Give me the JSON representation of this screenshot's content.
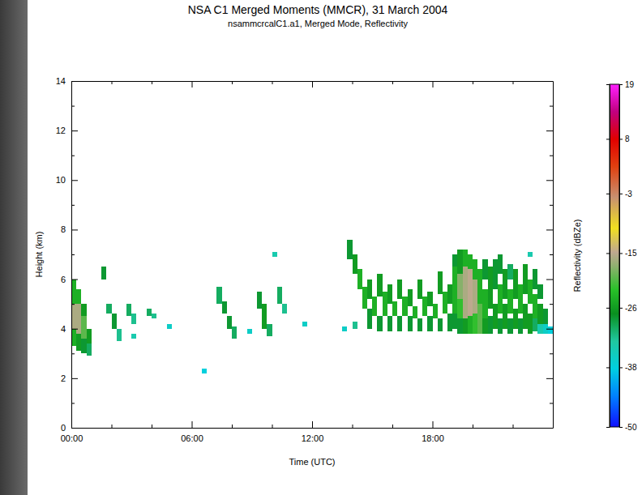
{
  "chart_data": {
    "type": "heatmap",
    "title": "NSA C1 Merged Moments (MMCR), 31 March 2004",
    "subtitle": "nsammcrcalC1.a1, Merged Mode, Reflectivity",
    "x_label": "Time (UTC)",
    "y_label": "Height (km)",
    "xlim": [
      0,
      24
    ],
    "xticks": [
      {
        "value": 0,
        "label": "00:00"
      },
      {
        "value": 6,
        "label": "06:00"
      },
      {
        "value": 12,
        "label": "12:00"
      },
      {
        "value": 18,
        "label": "18:00"
      }
    ],
    "xticks_minor": [
      2,
      4,
      8,
      10,
      14,
      16,
      20,
      22
    ],
    "ylim": [
      0,
      14
    ],
    "yticks": [
      0,
      2,
      4,
      6,
      8,
      10,
      12,
      14
    ],
    "yticks_minor": [
      1,
      3,
      5,
      7,
      9,
      11,
      13
    ],
    "time_step": 0.25,
    "colorbar": {
      "label": "Reflectivity (dBZe)",
      "range": [
        -50,
        19
      ],
      "ticks": [
        19,
        8,
        -3,
        -15,
        -26,
        -38,
        -50
      ]
    },
    "columns": [
      {
        "t": 0,
        "segments": [
          [
            3.3,
            4.0,
            -24
          ],
          [
            4.0,
            5.0,
            -16
          ],
          [
            5.0,
            6.0,
            -24
          ]
        ]
      },
      {
        "t": 0.25,
        "segments": [
          [
            3.1,
            3.8,
            -26
          ],
          [
            3.8,
            5.0,
            -16
          ],
          [
            5.0,
            5.6,
            -24
          ]
        ]
      },
      {
        "t": 0.5,
        "segments": [
          [
            3.0,
            3.6,
            -28
          ],
          [
            3.6,
            4.5,
            -20
          ],
          [
            4.5,
            5.0,
            -26
          ]
        ]
      },
      {
        "t": 0.75,
        "segments": [
          [
            2.9,
            3.4,
            -30
          ],
          [
            3.4,
            4.0,
            -26
          ]
        ]
      },
      {
        "t": 1.5,
        "segments": [
          [
            6.0,
            6.5,
            -28
          ]
        ]
      },
      {
        "t": 1.75,
        "segments": [
          [
            4.6,
            5.0,
            -30
          ]
        ]
      },
      {
        "t": 2.0,
        "segments": [
          [
            4.0,
            4.6,
            -28
          ]
        ]
      },
      {
        "t": 2.25,
        "segments": [
          [
            3.5,
            4.0,
            -32
          ]
        ]
      },
      {
        "t": 2.75,
        "segments": [
          [
            4.5,
            5.0,
            -30
          ]
        ]
      },
      {
        "t": 3.0,
        "segments": [
          [
            3.6,
            3.8,
            -34
          ],
          [
            4.2,
            4.6,
            -32
          ]
        ]
      },
      {
        "t": 3.75,
        "segments": [
          [
            4.5,
            4.8,
            -30
          ]
        ]
      },
      {
        "t": 4.0,
        "segments": [
          [
            4.4,
            4.6,
            -32
          ]
        ]
      },
      {
        "t": 4.75,
        "segments": [
          [
            4.0,
            4.2,
            -36
          ]
        ]
      },
      {
        "t": 6.5,
        "segments": [
          [
            2.2,
            2.4,
            -38
          ]
        ]
      },
      {
        "t": 7.25,
        "segments": [
          [
            5.0,
            5.7,
            -30
          ]
        ]
      },
      {
        "t": 7.5,
        "segments": [
          [
            4.6,
            5.1,
            -28
          ]
        ]
      },
      {
        "t": 7.75,
        "segments": [
          [
            4.0,
            4.5,
            -28
          ]
        ]
      },
      {
        "t": 8.0,
        "segments": [
          [
            3.6,
            4.1,
            -30
          ]
        ]
      },
      {
        "t": 8.75,
        "segments": [
          [
            3.8,
            4.0,
            -36
          ]
        ]
      },
      {
        "t": 9.25,
        "segments": [
          [
            4.8,
            5.5,
            -28
          ]
        ]
      },
      {
        "t": 9.5,
        "segments": [
          [
            4.0,
            5.0,
            -26
          ]
        ]
      },
      {
        "t": 9.75,
        "segments": [
          [
            3.7,
            4.2,
            -30
          ]
        ]
      },
      {
        "t": 10.0,
        "segments": [
          [
            6.9,
            7.1,
            -34
          ]
        ]
      },
      {
        "t": 10.25,
        "segments": [
          [
            5.0,
            5.7,
            -30
          ]
        ]
      },
      {
        "t": 10.5,
        "segments": [
          [
            4.6,
            5.0,
            -32
          ]
        ]
      },
      {
        "t": 11.5,
        "segments": [
          [
            4.1,
            4.3,
            -36
          ]
        ]
      },
      {
        "t": 13.5,
        "segments": [
          [
            3.9,
            4.1,
            -36
          ]
        ]
      },
      {
        "t": 13.75,
        "segments": [
          [
            6.8,
            7.6,
            -28
          ]
        ]
      },
      {
        "t": 14.0,
        "segments": [
          [
            4.0,
            4.3,
            -32
          ],
          [
            6.2,
            7.0,
            -26
          ]
        ]
      },
      {
        "t": 14.25,
        "segments": [
          [
            5.6,
            6.4,
            -24
          ]
        ]
      },
      {
        "t": 14.5,
        "segments": [
          [
            4.8,
            5.7,
            -24
          ]
        ]
      },
      {
        "t": 14.75,
        "segments": [
          [
            4.0,
            4.8,
            -28
          ],
          [
            5.2,
            6.0,
            -26
          ]
        ]
      },
      {
        "t": 15.0,
        "segments": [
          [
            4.5,
            5.3,
            -24
          ]
        ]
      },
      {
        "t": 15.25,
        "segments": [
          [
            3.9,
            4.5,
            -28
          ],
          [
            5.3,
            6.2,
            -26
          ]
        ]
      },
      {
        "t": 15.5,
        "segments": [
          [
            4.5,
            5.5,
            -24
          ]
        ]
      },
      {
        "t": 15.75,
        "segments": [
          [
            3.9,
            4.5,
            -28
          ],
          [
            5.0,
            5.8,
            -26
          ]
        ]
      },
      {
        "t": 16.0,
        "segments": [
          [
            4.5,
            5.1,
            -24
          ]
        ]
      },
      {
        "t": 16.25,
        "segments": [
          [
            3.9,
            4.5,
            -28
          ],
          [
            5.2,
            6.0,
            -26
          ]
        ]
      },
      {
        "t": 16.5,
        "segments": [
          [
            4.5,
            5.3,
            -24
          ]
        ]
      },
      {
        "t": 16.75,
        "segments": [
          [
            3.9,
            4.5,
            -28
          ],
          [
            4.9,
            5.6,
            -26
          ]
        ]
      },
      {
        "t": 17.0,
        "segments": [
          [
            4.4,
            4.9,
            -24
          ]
        ]
      },
      {
        "t": 17.25,
        "segments": [
          [
            3.9,
            4.4,
            -28
          ],
          [
            5.2,
            6.0,
            -26
          ]
        ]
      },
      {
        "t": 17.5,
        "segments": [
          [
            4.5,
            5.3,
            -24
          ]
        ]
      },
      {
        "t": 17.75,
        "segments": [
          [
            3.9,
            4.5,
            -28
          ],
          [
            4.9,
            5.5,
            -26
          ]
        ]
      },
      {
        "t": 18.0,
        "segments": [
          [
            4.4,
            5.0,
            -24
          ]
        ]
      },
      {
        "t": 18.25,
        "segments": [
          [
            3.9,
            4.4,
            -28
          ],
          [
            5.4,
            6.3,
            -26
          ]
        ]
      },
      {
        "t": 18.5,
        "segments": [
          [
            4.6,
            5.5,
            -24
          ]
        ]
      },
      {
        "t": 18.75,
        "segments": [
          [
            3.9,
            4.6,
            -28
          ],
          [
            5.0,
            5.8,
            -26
          ]
        ]
      },
      {
        "t": 19.0,
        "segments": [
          [
            4.0,
            4.6,
            -28
          ],
          [
            4.6,
            6.5,
            -24
          ],
          [
            6.5,
            7.0,
            -28
          ]
        ]
      },
      {
        "t": 19.25,
        "segments": [
          [
            3.8,
            4.4,
            -28
          ],
          [
            4.4,
            5.2,
            -22
          ],
          [
            5.2,
            6.2,
            -18
          ],
          [
            6.2,
            7.2,
            -26
          ]
        ]
      },
      {
        "t": 19.5,
        "segments": [
          [
            3.8,
            4.4,
            -26
          ],
          [
            4.4,
            6.5,
            -16
          ],
          [
            6.5,
            7.2,
            -24
          ]
        ]
      },
      {
        "t": 19.75,
        "segments": [
          [
            3.8,
            4.5,
            -24
          ],
          [
            4.5,
            6.4,
            -15
          ],
          [
            6.4,
            7.0,
            -24
          ]
        ]
      },
      {
        "t": 20.0,
        "segments": [
          [
            3.8,
            4.6,
            -22
          ],
          [
            4.6,
            6.0,
            -16
          ],
          [
            6.0,
            6.8,
            -24
          ]
        ]
      },
      {
        "t": 20.25,
        "segments": [
          [
            3.8,
            5.0,
            -20
          ],
          [
            5.0,
            6.4,
            -24
          ]
        ]
      },
      {
        "t": 20.5,
        "segments": [
          [
            3.8,
            4.4,
            -26
          ],
          [
            4.4,
            5.6,
            -24
          ],
          [
            6.0,
            6.8,
            -28
          ]
        ]
      },
      {
        "t": 20.75,
        "segments": [
          [
            3.8,
            4.5,
            -28
          ],
          [
            4.8,
            6.5,
            -26
          ]
        ]
      },
      {
        "t": 21.0,
        "segments": [
          [
            4.0,
            5.0,
            -26
          ],
          [
            5.6,
            6.8,
            -28
          ]
        ]
      },
      {
        "t": 21.25,
        "segments": [
          [
            3.8,
            4.4,
            -28
          ],
          [
            4.6,
            5.8,
            -24
          ],
          [
            6.2,
            7.0,
            -28
          ]
        ]
      },
      {
        "t": 21.5,
        "segments": [
          [
            4.0,
            5.0,
            -26
          ],
          [
            5.2,
            6.4,
            -26
          ]
        ]
      },
      {
        "t": 21.75,
        "segments": [
          [
            3.8,
            4.4,
            -28
          ],
          [
            4.6,
            5.6,
            -24
          ],
          [
            6.0,
            6.6,
            -30
          ]
        ]
      },
      {
        "t": 22.0,
        "segments": [
          [
            4.0,
            4.8,
            -26
          ],
          [
            5.2,
            6.4,
            -26
          ]
        ]
      },
      {
        "t": 22.25,
        "segments": [
          [
            3.8,
            4.4,
            -28
          ],
          [
            4.6,
            5.8,
            -24
          ]
        ]
      },
      {
        "t": 22.5,
        "segments": [
          [
            4.0,
            5.0,
            -26
          ],
          [
            5.4,
            6.6,
            -26
          ]
        ]
      },
      {
        "t": 22.75,
        "segments": [
          [
            3.8,
            4.6,
            -26
          ],
          [
            5.0,
            6.0,
            -24
          ],
          [
            6.9,
            7.1,
            -34
          ]
        ]
      },
      {
        "t": 23.0,
        "segments": [
          [
            3.9,
            4.4,
            -30
          ],
          [
            4.4,
            5.4,
            -24
          ],
          [
            5.6,
            6.4,
            -28
          ]
        ]
      },
      {
        "t": 23.25,
        "segments": [
          [
            3.8,
            4.2,
            -34
          ],
          [
            4.2,
            5.0,
            -26
          ],
          [
            5.2,
            5.8,
            -28
          ]
        ]
      },
      {
        "t": 23.5,
        "segments": [
          [
            3.8,
            4.2,
            -36
          ],
          [
            4.2,
            4.8,
            -28
          ]
        ]
      },
      {
        "t": 23.75,
        "segments": [
          [
            3.8,
            4.1,
            -38
          ]
        ]
      }
    ]
  }
}
